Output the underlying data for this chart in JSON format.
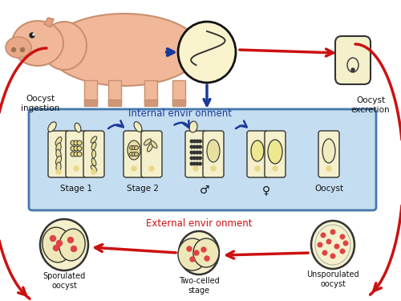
{
  "bg_color": "#ffffff",
  "red": "#cc1111",
  "blue": "#1a3a9a",
  "box_bg": "#c5ddf0",
  "box_border": "#4477aa",
  "cell_fill": "#f5f0cc",
  "cell_border": "#333333",
  "pig_fill": "#f0b898",
  "pig_border": "#c89070",
  "int_fill": "#f5f0cc",
  "oocyst_fill": "#f5f0cc",
  "text_internal": "Internal envir onment",
  "text_external": "External envir onment",
  "text_ingestion": "Oocyst\ningestion",
  "text_excretion": "Oocyst\nexcretion",
  "text_sporulated": "Sporulated\noocyst",
  "text_twocelled": "Two-celled\nstage",
  "text_unsporulated": "Unsporulated\noocyst",
  "text_stage1": "Stage 1",
  "text_stage2": "Stage 2",
  "text_male": "♂",
  "text_female": "♀",
  "text_oocyst_lbl": "Oocyst",
  "label_color": "#111111",
  "internal_text_color": "#1a3a9a",
  "external_text_color": "#cc1111"
}
